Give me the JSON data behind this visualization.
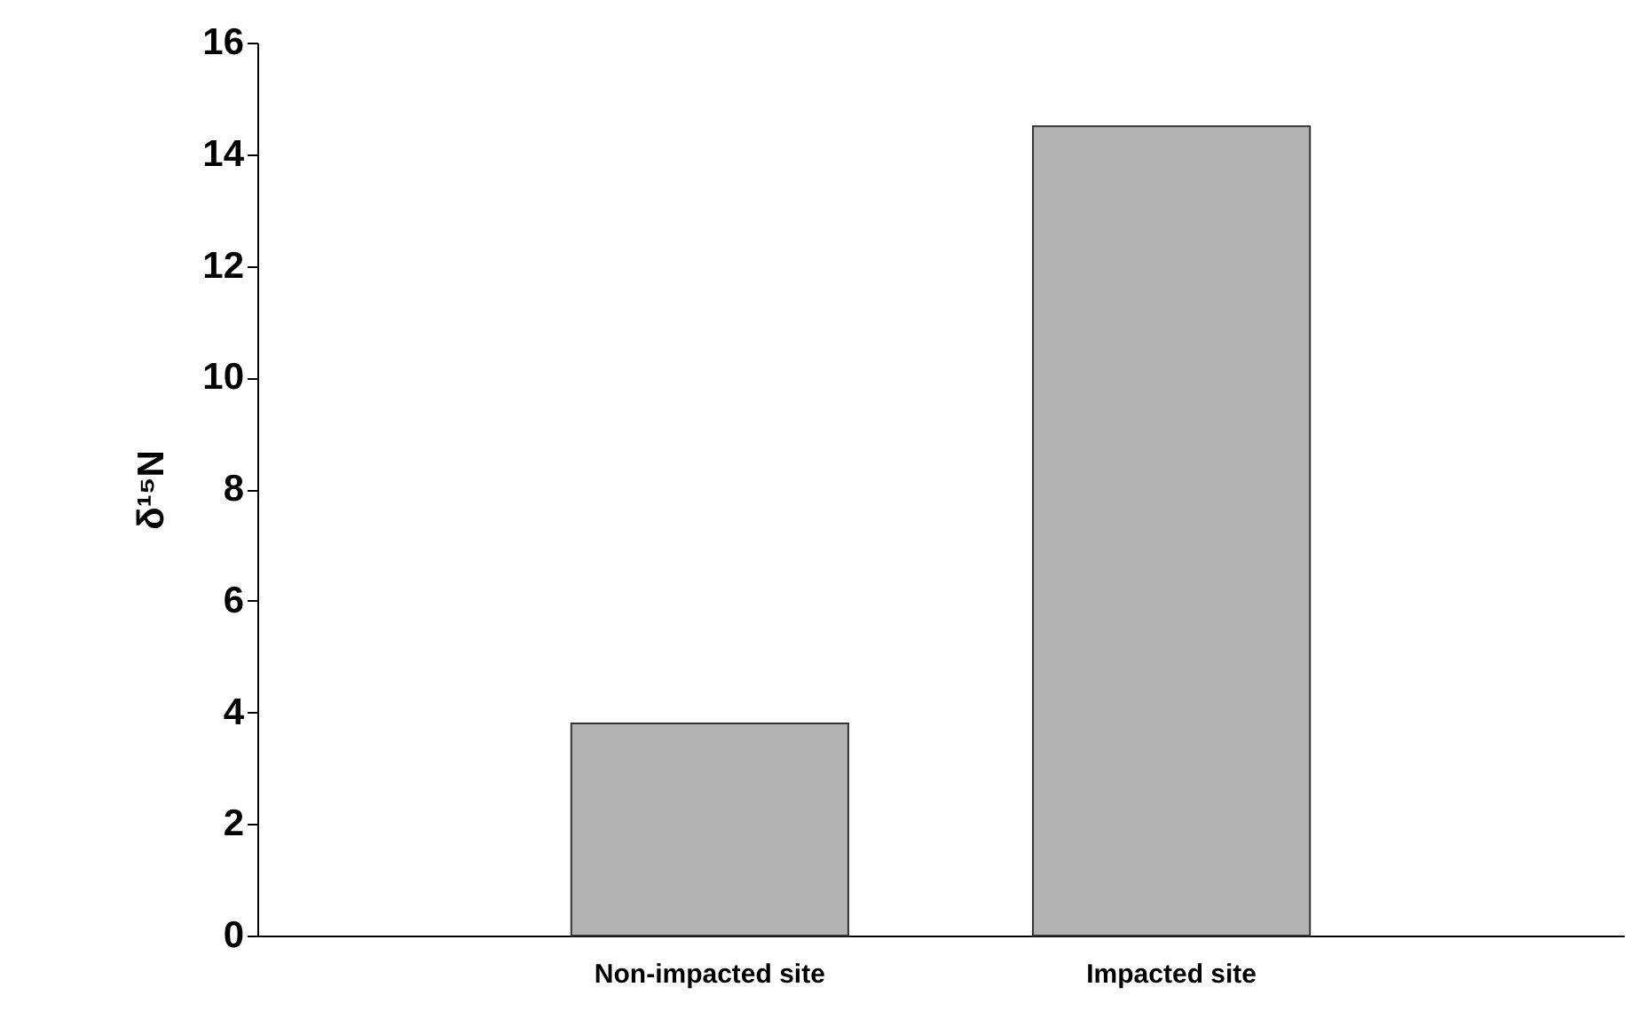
{
  "chart_data": {
    "type": "bar",
    "ylabel": "δ¹⁵N",
    "categories": [
      "Non-impacted site",
      "Impacted site"
    ],
    "values": [
      3.8,
      14.5
    ],
    "color": "#b3b3b3",
    "ylim": [
      0,
      16
    ],
    "yticks": [
      0,
      2,
      4,
      6,
      8,
      10,
      12,
      14,
      16
    ],
    "grid": false
  }
}
